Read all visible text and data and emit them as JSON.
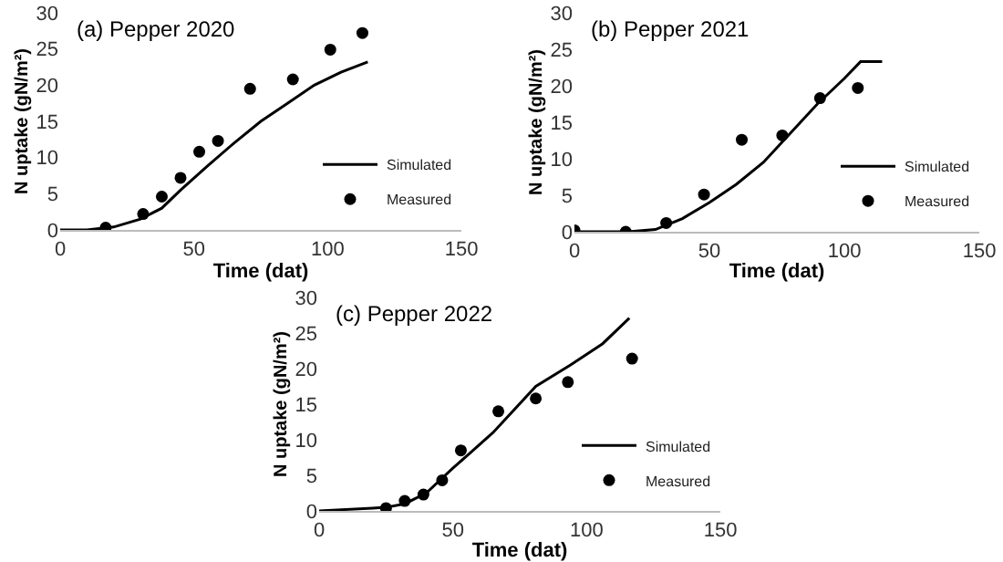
{
  "chart_data": [
    {
      "type": "line",
      "title": "(a) Pepper 2020",
      "xlabel": "Time (dat)",
      "ylabel": "N uptake (gN/m²)",
      "xlim": [
        0,
        150
      ],
      "xticks": [
        0,
        50,
        100,
        150
      ],
      "ylim": [
        0,
        30
      ],
      "yticks": [
        0,
        5,
        10,
        15,
        20,
        25,
        30
      ],
      "grid": false,
      "legend": "bottom right",
      "series": [
        {
          "name": "Simulated",
          "type": "line",
          "color": "#000000",
          "x": [
            0,
            10,
            20,
            30,
            38,
            45,
            55,
            65,
            75,
            85,
            95,
            105,
            115
          ],
          "values": [
            0,
            0,
            0.4,
            1.5,
            3,
            5.5,
            8.8,
            12,
            15,
            17.5,
            20,
            21.8,
            23.2
          ]
        },
        {
          "name": "Measured",
          "type": "scatter",
          "marker": "circle",
          "color": "#000000",
          "x": [
            17,
            31,
            38,
            45,
            52,
            59,
            71,
            87,
            101,
            113
          ],
          "values": [
            0.3,
            2.2,
            4.6,
            7.2,
            10.8,
            12.3,
            19.5,
            20.8,
            24.9,
            27.2
          ]
        }
      ]
    },
    {
      "type": "line",
      "title": "(b) Pepper 2021",
      "xlabel": "Time (dat)",
      "ylabel": "N uptake (gN/m²)",
      "xlim": [
        0,
        150
      ],
      "xticks": [
        0,
        50,
        100,
        150
      ],
      "ylim": [
        0,
        30
      ],
      "yticks": [
        0,
        5,
        10,
        15,
        20,
        25,
        30
      ],
      "grid": false,
      "legend": "bottom right",
      "series": [
        {
          "name": "Simulated",
          "type": "line",
          "color": "#000000",
          "x": [
            0,
            20,
            30,
            40,
            50,
            60,
            70,
            80,
            90,
            100,
            106,
            114
          ],
          "values": [
            0,
            0,
            0.3,
            1.8,
            4,
            6.5,
            9.5,
            13.5,
            17.5,
            21,
            23.3,
            23.3
          ]
        },
        {
          "name": "Measured",
          "type": "scatter",
          "marker": "circle",
          "color": "#000000",
          "x": [
            0,
            19,
            34,
            48,
            62,
            77,
            91,
            105
          ],
          "values": [
            0.2,
            0,
            1.2,
            5.1,
            12.6,
            13.2,
            18.3,
            19.7
          ]
        }
      ]
    },
    {
      "type": "line",
      "title": "(c) Pepper 2022",
      "xlabel": "Time (dat)",
      "ylabel": "N uptake (gN/m²)",
      "xlim": [
        0,
        150
      ],
      "xticks": [
        0,
        50,
        100,
        150
      ],
      "ylim": [
        0,
        30
      ],
      "yticks": [
        0,
        5,
        10,
        15,
        20,
        25,
        30
      ],
      "grid": false,
      "legend": "bottom right",
      "series": [
        {
          "name": "Simulated",
          "type": "line",
          "color": "#000000",
          "x": [
            0,
            20,
            25,
            32,
            40,
            50,
            65,
            81,
            94,
            106,
            116
          ],
          "values": [
            0,
            0.4,
            0.5,
            1,
            2.5,
            6,
            11,
            17.5,
            20.5,
            23.5,
            27.1
          ]
        },
        {
          "name": "Measured",
          "type": "scatter",
          "marker": "circle",
          "color": "#000000",
          "x": [
            25,
            32,
            39,
            46,
            53,
            67,
            81,
            93,
            117
          ],
          "values": [
            0.4,
            1.4,
            2.3,
            4.3,
            8.5,
            14,
            15.8,
            18.1,
            21.4
          ]
        }
      ]
    }
  ]
}
